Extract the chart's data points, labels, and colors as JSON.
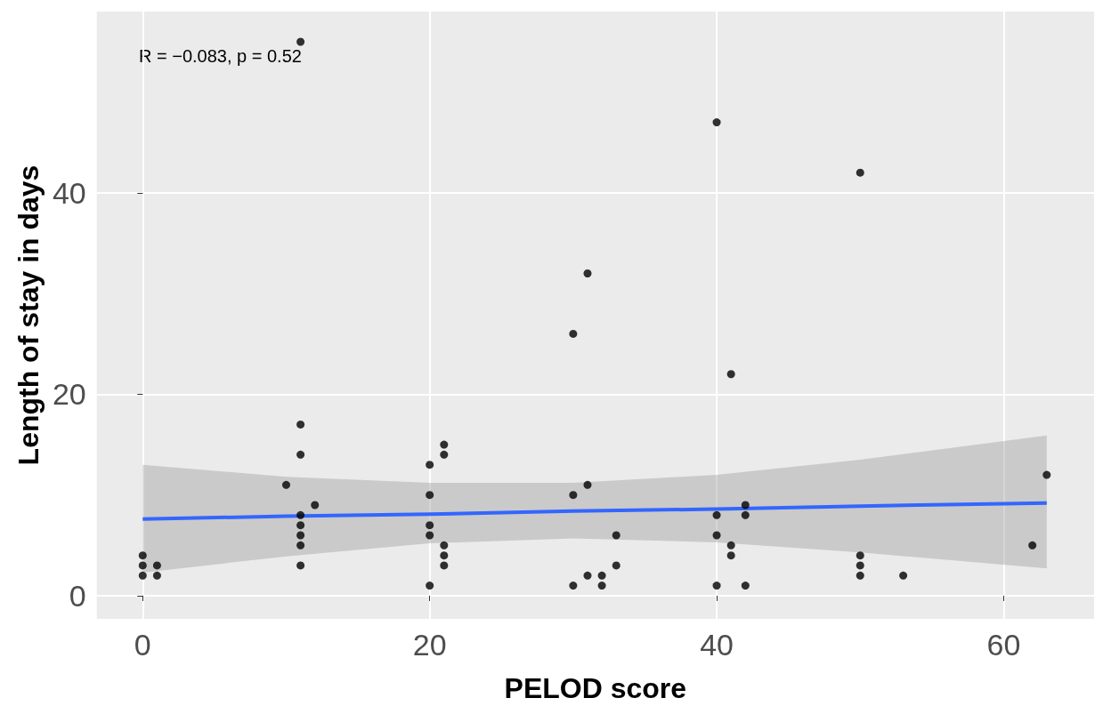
{
  "chart_data": {
    "type": "scatter",
    "xlabel": "PELOD score",
    "ylabel": "Length of stay in days",
    "annotations": [
      "R = −0.083, p = 0.52"
    ],
    "xlim": [
      -3.2,
      66.3
    ],
    "ylim": [
      -2.3,
      58
    ],
    "xticks": [
      0,
      20,
      40,
      60
    ],
    "yticks": [
      0,
      20,
      40
    ],
    "grid": true,
    "marker": "circle",
    "series": [
      {
        "color": "#000000",
        "x": [
          0,
          0,
          0,
          1,
          1,
          10,
          11,
          11,
          11,
          11,
          11,
          11,
          11,
          11,
          12,
          20,
          20,
          20,
          20,
          20,
          21,
          21,
          21,
          21,
          21,
          30,
          30,
          30,
          31,
          31,
          31,
          32,
          32,
          33,
          33,
          40,
          40,
          40,
          40,
          41,
          41,
          41,
          42,
          42,
          42,
          50,
          50,
          50,
          50,
          53,
          62,
          63
        ],
        "values": [
          2,
          3,
          4,
          2,
          3,
          11,
          17,
          14,
          8,
          7,
          6,
          5,
          3,
          55,
          9,
          13,
          10,
          7,
          6,
          1,
          15,
          14,
          5,
          4,
          3,
          26,
          10,
          1,
          32,
          11,
          2,
          2,
          1,
          6,
          3,
          47,
          8,
          6,
          1,
          22,
          5,
          4,
          9,
          8,
          1,
          42,
          4,
          3,
          2,
          2,
          5,
          12
        ]
      },
      {
        "type": "line",
        "color": "#3366ff",
        "marker": "none",
        "x": [
          0,
          10,
          20,
          30,
          40,
          50,
          63
        ],
        "values": [
          7.6,
          7.9,
          8.1,
          8.4,
          8.6,
          8.9,
          9.2
        ],
        "lower": [
          2.3,
          3.9,
          5.2,
          5.7,
          5.3,
          4.3,
          2.7
        ],
        "upper": [
          13.0,
          11.8,
          11.2,
          11.2,
          12.0,
          13.5,
          15.9
        ]
      }
    ]
  }
}
